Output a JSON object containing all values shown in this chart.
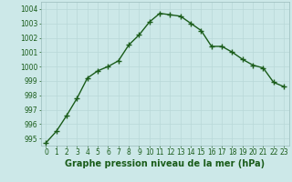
{
  "x": [
    0,
    1,
    2,
    3,
    4,
    5,
    6,
    7,
    8,
    9,
    10,
    11,
    12,
    13,
    14,
    15,
    16,
    17,
    18,
    19,
    20,
    21,
    22,
    23
  ],
  "y": [
    994.7,
    995.5,
    996.6,
    997.8,
    999.2,
    999.7,
    1000.0,
    1000.4,
    1001.5,
    1002.2,
    1003.1,
    1003.7,
    1003.6,
    1003.5,
    1003.0,
    1002.5,
    1001.4,
    1001.4,
    1001.0,
    1000.5,
    1000.1,
    999.9,
    998.9,
    998.6
  ],
  "line_color": "#1a5c1a",
  "marker": "+",
  "markersize": 4,
  "linewidth": 1.0,
  "markeredgewidth": 1.0,
  "xlabel": "Graphe pression niveau de la mer (hPa)",
  "xlabel_fontsize": 7,
  "xlabel_color": "#1a5c1a",
  "xlabel_bold": true,
  "ylim": [
    994.5,
    1004.5
  ],
  "xlim": [
    -0.5,
    23.5
  ],
  "yticks": [
    995,
    996,
    997,
    998,
    999,
    1000,
    1001,
    1002,
    1003,
    1004
  ],
  "xticks": [
    0,
    1,
    2,
    3,
    4,
    5,
    6,
    7,
    8,
    9,
    10,
    11,
    12,
    13,
    14,
    15,
    16,
    17,
    18,
    19,
    20,
    21,
    22,
    23
  ],
  "xtick_labels": [
    "0",
    "1",
    "2",
    "3",
    "4",
    "5",
    "6",
    "7",
    "8",
    "9",
    "10",
    "11",
    "12",
    "13",
    "14",
    "15",
    "16",
    "17",
    "18",
    "19",
    "20",
    "21",
    "22",
    "23"
  ],
  "grid_color": "#b8d8d8",
  "bg_color": "#cce8e8",
  "tick_fontsize": 5.5,
  "tick_color": "#1a5c1a",
  "spine_color": "#9bbcbc"
}
